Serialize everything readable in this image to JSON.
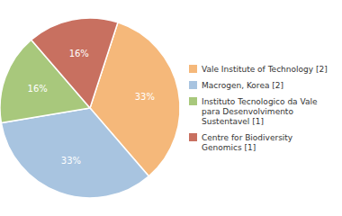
{
  "chart_data": {
    "type": "pie",
    "categories": [
      "Vale Institute of Technology [2]",
      "Macrogen, Korea [2]",
      "Instituto Tecnologico da Vale\npara Desenvolvimento\nSustentavel [1]",
      "Centre for Biodiversity\nGenomics [1]"
    ],
    "values": [
      33,
      33,
      16,
      16
    ],
    "value_labels": [
      "33%",
      "33%",
      "16%",
      "16%"
    ],
    "colors": [
      "#f5b87a",
      "#a8c4e0",
      "#a8c87c",
      "#c87060"
    ],
    "data_labels": true,
    "legend": "right"
  }
}
